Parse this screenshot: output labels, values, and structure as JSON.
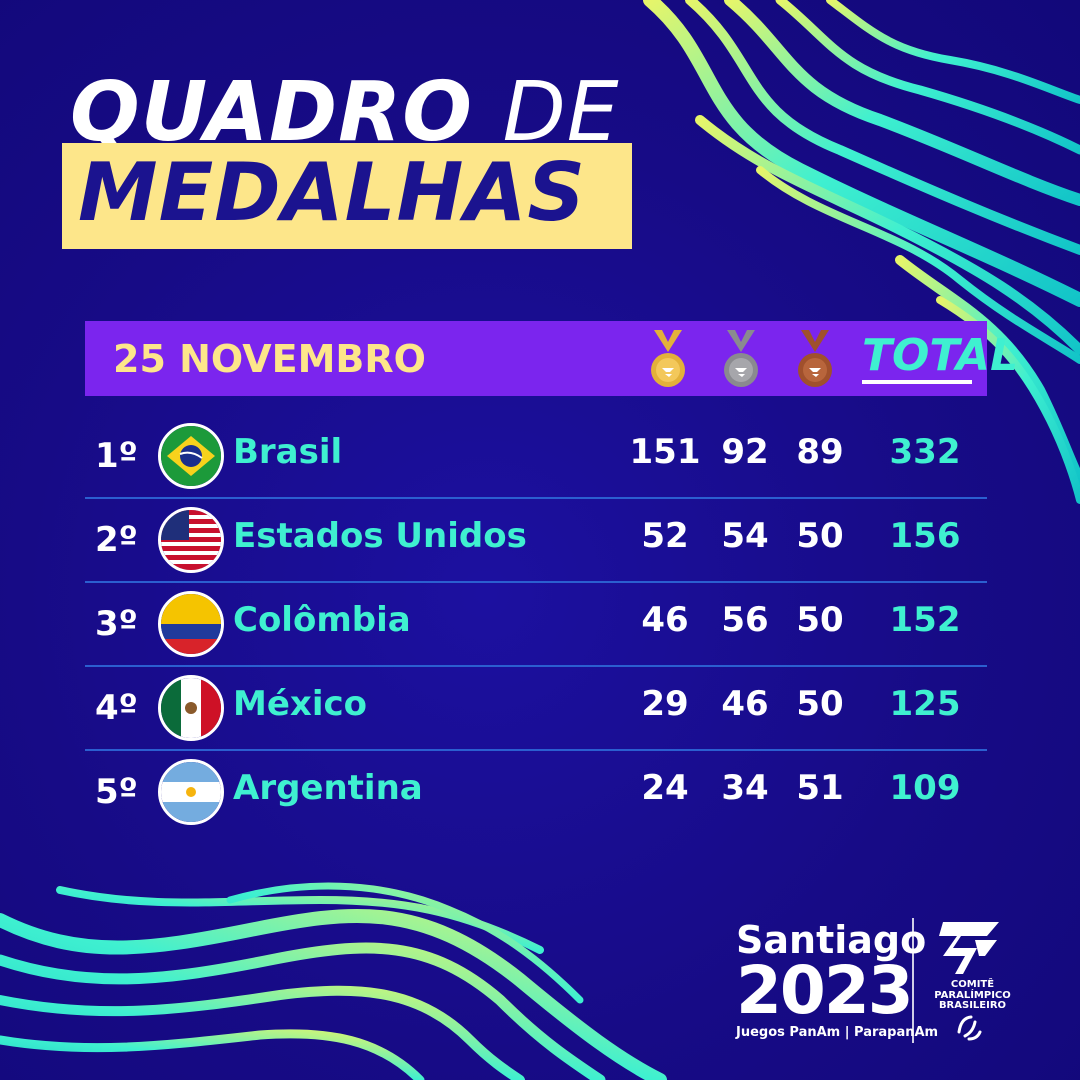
{
  "title": {
    "line1_a": "QUADRO",
    "line1_b": "DE",
    "line2": "MEDALHAS"
  },
  "header": {
    "date": "25 NOVEMBRO",
    "total_label": "TOTAL",
    "medal_icons": [
      "gold-medal-icon",
      "silver-medal-icon",
      "bronze-medal-icon"
    ]
  },
  "rows": [
    {
      "rank": "1º",
      "country": "Brasil",
      "flag": "brazil-flag-icon",
      "gold": "151",
      "silver": "92",
      "bronze": "89",
      "total": "332"
    },
    {
      "rank": "2º",
      "country": "Estados Unidos",
      "flag": "usa-flag-icon",
      "gold": "52",
      "silver": "54",
      "bronze": "50",
      "total": "156"
    },
    {
      "rank": "3º",
      "country": "Colômbia",
      "flag": "colombia-flag-icon",
      "gold": "46",
      "silver": "56",
      "bronze": "50",
      "total": "152"
    },
    {
      "rank": "4º",
      "country": "México",
      "flag": "mexico-flag-icon",
      "gold": "29",
      "silver": "46",
      "bronze": "50",
      "total": "125"
    },
    {
      "rank": "5º",
      "country": "Argentina",
      "flag": "argentina-flag-icon",
      "gold": "24",
      "silver": "34",
      "bronze": "51",
      "total": "109"
    }
  ],
  "footer": {
    "event_name": "Santiago",
    "event_year": "2023",
    "event_sub": "Juegos PanAm | ParapanAm",
    "org_lines": [
      "COMITÊ",
      "PARALÍMPICO",
      "BRASILEIRO"
    ]
  },
  "colors": {
    "background": "#170b86",
    "header_bar": "#7b25ee",
    "title_highlight": "#fde68a",
    "accent_teal": "#3ff0d0",
    "wave_yellow": "#e6f56a",
    "gold": "#e3b13a",
    "silver": "#8a8a8f",
    "bronze": "#a0502c"
  }
}
